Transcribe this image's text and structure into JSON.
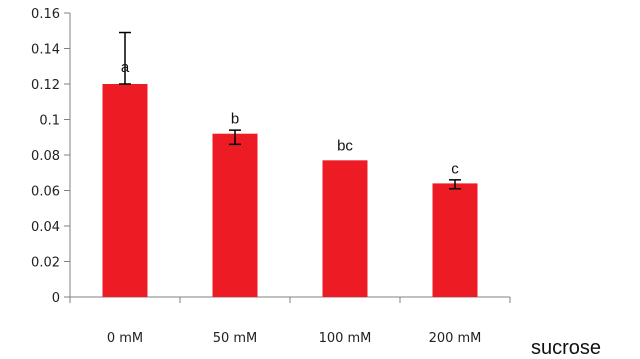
{
  "chart_data": {
    "type": "bar",
    "categories": [
      "0 mM",
      "50 mM",
      "100 mM",
      "200 mM"
    ],
    "values": [
      0.12,
      0.092,
      0.077,
      0.064
    ],
    "error_upper": [
      0.149,
      0.094,
      0.077,
      0.066
    ],
    "error_lower": [
      0.12,
      0.086,
      0.077,
      0.061
    ],
    "significance_labels": [
      "a",
      "b",
      "bc",
      "c"
    ],
    "title": "",
    "xlabel": "sucrose",
    "ylabel": "",
    "ylim": [
      0,
      0.16
    ],
    "yticks": [
      "0",
      "0.02",
      "0.04",
      "0.06",
      "0.08",
      "0.1",
      "0.12",
      "0.14",
      "0.16"
    ],
    "ytick_values": [
      0,
      0.02,
      0.04,
      0.06,
      0.08,
      0.1,
      0.12,
      0.14,
      0.16
    ],
    "grid": false,
    "legend": "none",
    "bar_color": "#ed1c24",
    "axis_color": "#808080",
    "errorbar_color": "#000000"
  }
}
